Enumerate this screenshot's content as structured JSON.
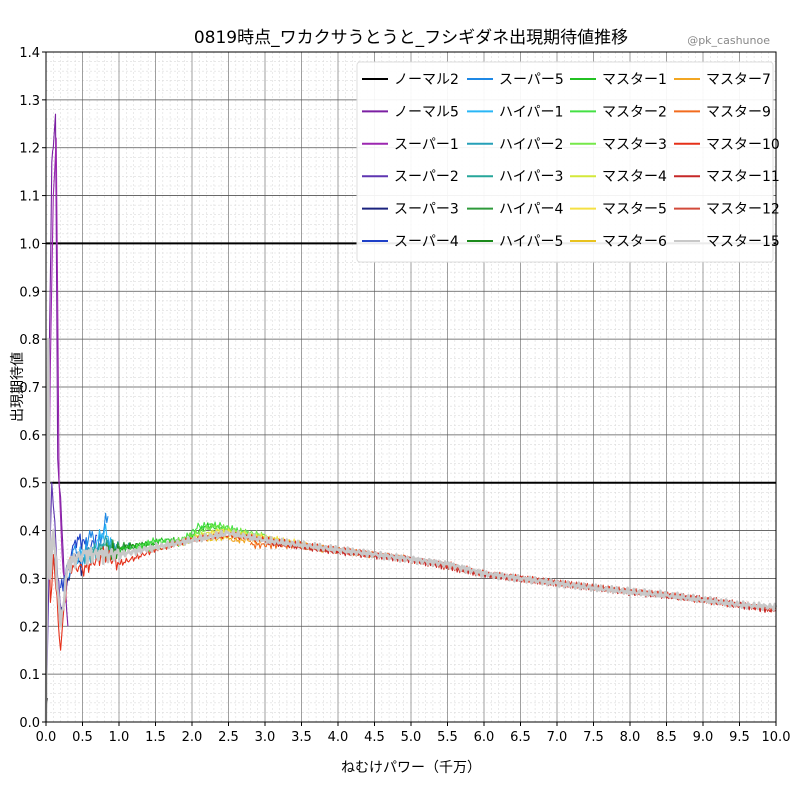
{
  "chart_data": {
    "type": "line",
    "title": "0819時点_ワカクサうとうと_フシギダネ出現期待値推移",
    "credit": "@pk_cashunoe",
    "xlabel": "ねむけパワー（千万）",
    "ylabel": "出現期待値",
    "xlim": [
      0,
      10
    ],
    "ylim": [
      0,
      1.4
    ],
    "x_ticks": [
      "0.0",
      "0.5",
      "1.0",
      "1.5",
      "2.0",
      "2.5",
      "3.0",
      "3.5",
      "4.0",
      "4.5",
      "5.0",
      "5.5",
      "6.0",
      "6.5",
      "7.0",
      "7.5",
      "8.0",
      "8.5",
      "9.0",
      "9.5",
      "10.0"
    ],
    "y_ticks": [
      "0.0",
      "0.1",
      "0.2",
      "0.3",
      "0.4",
      "0.5",
      "0.6",
      "0.7",
      "0.8",
      "0.9",
      "1.0",
      "1.1",
      "1.2",
      "1.3",
      "1.4"
    ],
    "reference_lines": [
      0.5,
      1.0
    ],
    "grid": true,
    "legend_position": "top-right",
    "series": [
      {
        "name": "ノーマル2",
        "color": "#000000",
        "points": [
          [
            0.0,
            0.0
          ],
          [
            0.02,
            0.05
          ]
        ]
      },
      {
        "name": "ノーマル5",
        "color": "#7b1fa2",
        "points": [
          [
            0.0,
            0.0
          ],
          [
            0.02,
            0.3
          ],
          [
            0.05,
            0.82
          ],
          [
            0.08,
            1.17
          ],
          [
            0.1,
            1.2
          ],
          [
            0.13,
            1.27
          ],
          [
            0.16,
            0.55
          ],
          [
            0.2,
            0.47
          ],
          [
            0.25,
            0.3
          ],
          [
            0.3,
            0.2
          ]
        ]
      },
      {
        "name": "スーパー1",
        "color": "#9c27b0",
        "points": [
          [
            0.0,
            0.0
          ],
          [
            0.03,
            0.4
          ],
          [
            0.06,
            0.75
          ],
          [
            0.1,
            1.1
          ],
          [
            0.14,
            1.22
          ],
          [
            0.18,
            0.5
          ],
          [
            0.22,
            0.35
          ],
          [
            0.28,
            0.25
          ]
        ]
      },
      {
        "name": "スーパー2",
        "color": "#5e35b1",
        "points": [
          [
            0.0,
            0.0
          ],
          [
            0.04,
            0.3
          ],
          [
            0.08,
            0.5
          ],
          [
            0.12,
            0.42
          ],
          [
            0.16,
            0.3
          ],
          [
            0.22,
            0.22
          ],
          [
            0.3,
            0.3
          ]
        ]
      },
      {
        "name": "スーパー3",
        "color": "#1a237e",
        "points": [
          [
            0.1,
            0.35
          ],
          [
            0.2,
            0.22
          ],
          [
            0.3,
            0.3
          ],
          [
            0.4,
            0.35
          ],
          [
            0.5,
            0.32
          ]
        ]
      },
      {
        "name": "スーパー4",
        "color": "#1e40c8",
        "points": [
          [
            0.2,
            0.28
          ],
          [
            0.3,
            0.32
          ],
          [
            0.4,
            0.38
          ],
          [
            0.5,
            0.38
          ],
          [
            0.6,
            0.36
          ],
          [
            0.7,
            0.39
          ]
        ]
      },
      {
        "name": "スーパー5",
        "color": "#1e88e5",
        "points": [
          [
            0.3,
            0.3
          ],
          [
            0.4,
            0.37
          ],
          [
            0.5,
            0.33
          ],
          [
            0.6,
            0.4
          ],
          [
            0.7,
            0.36
          ],
          [
            0.8,
            0.41
          ],
          [
            0.85,
            0.43
          ]
        ]
      },
      {
        "name": "ハイパー1",
        "color": "#29b6f6",
        "points": [
          [
            0.4,
            0.33
          ],
          [
            0.5,
            0.36
          ],
          [
            0.6,
            0.34
          ],
          [
            0.7,
            0.38
          ],
          [
            0.8,
            0.4
          ],
          [
            0.9,
            0.37
          ]
        ]
      },
      {
        "name": "ハイパー2",
        "color": "#26a0b8",
        "points": [
          [
            0.5,
            0.34
          ],
          [
            0.6,
            0.36
          ],
          [
            0.7,
            0.35
          ],
          [
            0.8,
            0.38
          ],
          [
            0.9,
            0.36
          ],
          [
            1.0,
            0.37
          ]
        ]
      },
      {
        "name": "ハイパー3",
        "color": "#26a69a",
        "points": [
          [
            0.6,
            0.35
          ],
          [
            0.8,
            0.37
          ],
          [
            1.0,
            0.36
          ],
          [
            1.2,
            0.37
          ]
        ]
      },
      {
        "name": "ハイパー4",
        "color": "#2e9a3a",
        "points": [
          [
            0.7,
            0.35
          ],
          [
            0.9,
            0.36
          ],
          [
            1.1,
            0.37
          ],
          [
            1.3,
            0.36
          ]
        ]
      },
      {
        "name": "ハイパー5",
        "color": "#1b8a1b",
        "points": [
          [
            0.8,
            0.35
          ],
          [
            1.0,
            0.36
          ],
          [
            1.2,
            0.37
          ],
          [
            1.5,
            0.37
          ]
        ]
      },
      {
        "name": "マスター1",
        "color": "#22c122",
        "points": [
          [
            1.0,
            0.36
          ],
          [
            1.3,
            0.37
          ],
          [
            1.6,
            0.38
          ],
          [
            1.9,
            0.38
          ],
          [
            2.2,
            0.41
          ],
          [
            2.6,
            0.4
          ]
        ]
      },
      {
        "name": "マスター2",
        "color": "#44e044",
        "points": [
          [
            1.2,
            0.36
          ],
          [
            1.5,
            0.38
          ],
          [
            1.8,
            0.37
          ],
          [
            2.1,
            0.41
          ],
          [
            2.4,
            0.41
          ],
          [
            2.8,
            0.39
          ]
        ]
      },
      {
        "name": "マスター3",
        "color": "#76e84a",
        "points": [
          [
            1.4,
            0.36
          ],
          [
            1.7,
            0.37
          ],
          [
            2.0,
            0.39
          ],
          [
            2.3,
            0.41
          ],
          [
            2.6,
            0.4
          ],
          [
            3.0,
            0.39
          ]
        ]
      },
      {
        "name": "マスター4",
        "color": "#d4e83a",
        "points": [
          [
            1.8,
            0.37
          ],
          [
            2.1,
            0.39
          ],
          [
            2.4,
            0.4
          ],
          [
            2.8,
            0.39
          ],
          [
            3.2,
            0.38
          ]
        ]
      },
      {
        "name": "マスター5",
        "color": "#f5e043",
        "points": [
          [
            2.0,
            0.38
          ],
          [
            2.4,
            0.4
          ],
          [
            2.8,
            0.39
          ],
          [
            3.2,
            0.38
          ],
          [
            3.6,
            0.37
          ]
        ]
      },
      {
        "name": "マスター6",
        "color": "#e8c21e",
        "points": [
          [
            2.2,
            0.38
          ],
          [
            2.6,
            0.39
          ],
          [
            3.0,
            0.38
          ],
          [
            3.4,
            0.37
          ],
          [
            3.8,
            0.36
          ]
        ]
      },
      {
        "name": "マスター7",
        "color": "#f2a622",
        "points": [
          [
            2.5,
            0.38
          ],
          [
            3.0,
            0.38
          ],
          [
            3.5,
            0.37
          ],
          [
            4.0,
            0.36
          ],
          [
            4.5,
            0.35
          ]
        ]
      },
      {
        "name": "マスター9",
        "color": "#f26b1d",
        "points": [
          [
            2.8,
            0.37
          ],
          [
            3.5,
            0.37
          ],
          [
            4.2,
            0.355
          ],
          [
            5.0,
            0.34
          ]
        ]
      },
      {
        "name": "マスター10",
        "color": "#e53019",
        "points": [
          [
            0.0,
            0.0
          ],
          [
            0.03,
            0.45
          ],
          [
            0.06,
            0.25
          ],
          [
            0.1,
            0.35
          ],
          [
            0.2,
            0.15
          ],
          [
            0.3,
            0.33
          ],
          [
            0.5,
            0.32
          ],
          [
            0.8,
            0.35
          ],
          [
            1.0,
            0.33
          ],
          [
            1.5,
            0.36
          ],
          [
            2.0,
            0.38
          ],
          [
            2.5,
            0.39
          ],
          [
            3.0,
            0.38
          ],
          [
            3.5,
            0.37
          ],
          [
            4.0,
            0.36
          ],
          [
            4.5,
            0.35
          ],
          [
            5.0,
            0.34
          ],
          [
            5.5,
            0.33
          ],
          [
            6.0,
            0.31
          ],
          [
            6.5,
            0.3
          ],
          [
            7.0,
            0.29
          ],
          [
            7.5,
            0.28
          ],
          [
            8.0,
            0.27
          ],
          [
            8.5,
            0.265
          ],
          [
            9.0,
            0.255
          ],
          [
            9.5,
            0.245
          ],
          [
            10.0,
            0.235
          ]
        ]
      },
      {
        "name": "マスター11",
        "color": "#c62828",
        "points": [
          [
            3.0,
            0.375
          ],
          [
            4.0,
            0.355
          ],
          [
            5.0,
            0.34
          ],
          [
            6.0,
            0.31
          ],
          [
            7.0,
            0.29
          ],
          [
            8.0,
            0.27
          ],
          [
            9.0,
            0.255
          ],
          [
            10.0,
            0.232
          ]
        ]
      },
      {
        "name": "マスター12",
        "color": "#d24a3a",
        "points": [
          [
            4.0,
            0.36
          ],
          [
            5.0,
            0.34
          ],
          [
            6.0,
            0.31
          ],
          [
            7.0,
            0.29
          ],
          [
            8.0,
            0.272
          ],
          [
            9.0,
            0.256
          ],
          [
            10.0,
            0.236
          ]
        ]
      },
      {
        "name": "マスター15",
        "color": "#c8c8c8",
        "points": [
          [
            0.0,
            0.0
          ],
          [
            0.03,
            0.8
          ],
          [
            0.05,
            0.3
          ],
          [
            0.1,
            0.4
          ],
          [
            0.2,
            0.2
          ],
          [
            0.3,
            0.33
          ],
          [
            0.5,
            0.35
          ],
          [
            1.0,
            0.35
          ],
          [
            1.5,
            0.365
          ],
          [
            2.0,
            0.38
          ],
          [
            2.5,
            0.395
          ],
          [
            3.0,
            0.38
          ],
          [
            3.5,
            0.37
          ],
          [
            4.0,
            0.36
          ],
          [
            4.5,
            0.35
          ],
          [
            5.0,
            0.34
          ],
          [
            5.5,
            0.33
          ],
          [
            6.0,
            0.31
          ],
          [
            6.5,
            0.3
          ],
          [
            7.0,
            0.29
          ],
          [
            7.5,
            0.28
          ],
          [
            8.0,
            0.272
          ],
          [
            8.5,
            0.265
          ],
          [
            9.0,
            0.255
          ],
          [
            9.5,
            0.245
          ],
          [
            10.0,
            0.24
          ]
        ]
      }
    ]
  }
}
